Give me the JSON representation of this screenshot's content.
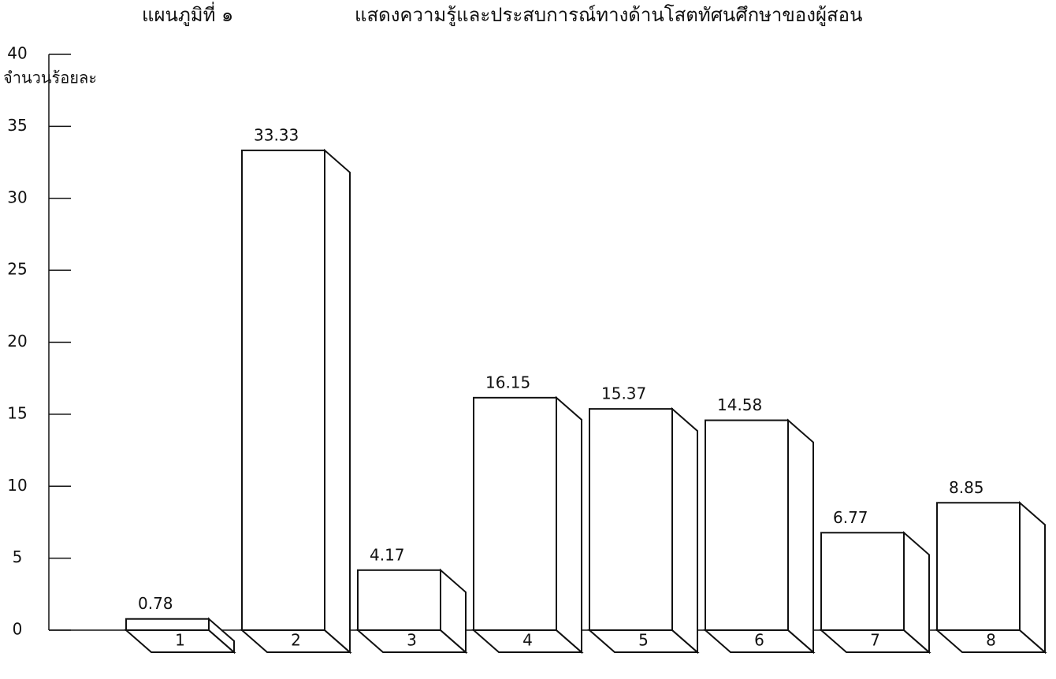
{
  "chart_data": {
    "type": "bar3d",
    "title": "แผนภูมิที่ ๑",
    "subtitle": "แสดงความรู้และประสบการณ์ทางด้านโสตทัศนศึกษาของผู้สอน",
    "ylabel": "จำนวนร้อยละ",
    "categories": [
      "1",
      "2",
      "3",
      "4",
      "5",
      "6",
      "7",
      "8"
    ],
    "values": [
      0.78,
      33.33,
      4.17,
      16.15,
      15.37,
      14.58,
      6.77,
      8.85
    ],
    "color": "#ffffff",
    "ylim": [
      0,
      40
    ],
    "yticks": [
      0,
      5,
      10,
      15,
      20,
      25,
      30,
      35,
      40
    ]
  }
}
